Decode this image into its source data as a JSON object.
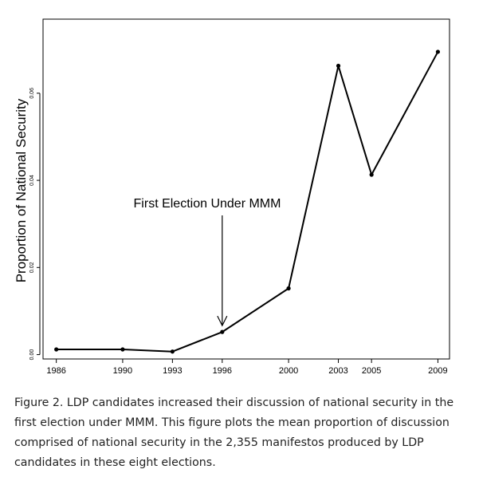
{
  "chart_data": {
    "type": "line",
    "x": [
      "1986",
      "1990",
      "1993",
      "1996",
      "2000",
      "2003",
      "2005",
      "2009"
    ],
    "y": [
      0.0012,
      0.0012,
      0.0007,
      0.0052,
      0.0152,
      0.0663,
      0.0413,
      0.0695
    ],
    "xlabel": "",
    "ylabel": "Proportion of National Security",
    "y_ticks": [
      "0.00",
      "0.02",
      "0.04",
      "0.06"
    ],
    "ylim": [
      -0.001,
      0.077
    ],
    "grid": false,
    "annotation": {
      "text": "First Election Under MMM",
      "target_x": "1996"
    }
  },
  "caption": "Figure 2. LDP candidates increased their discussion of national security in the first election under MMM. This figure plots the mean proportion of discussion comprised of national security in the 2,355 manifestos produced by LDP candidates in these eight elections."
}
